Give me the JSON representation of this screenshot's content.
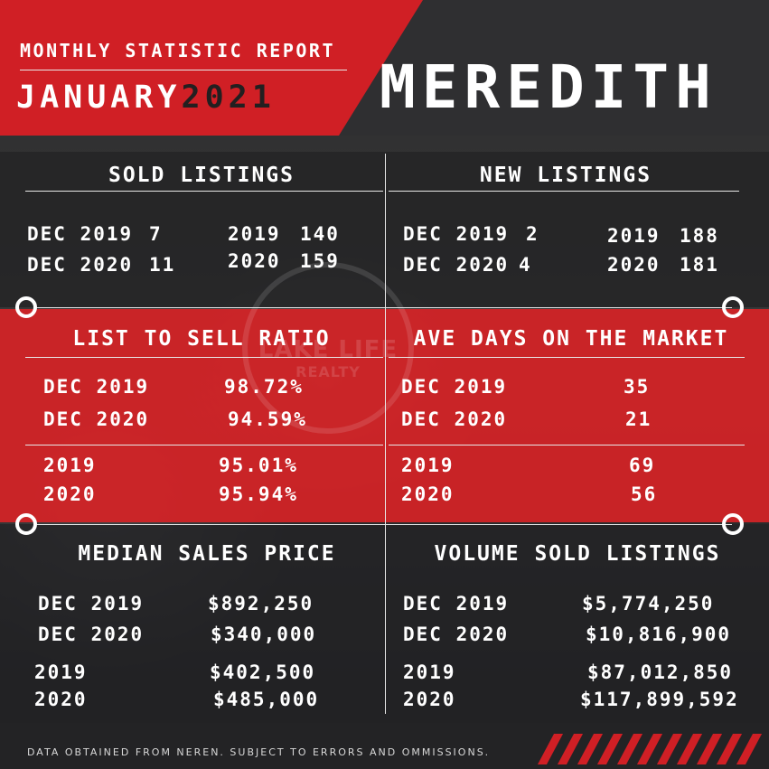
{
  "header": {
    "report_title": "MONTHLY STATISTIC REPORT",
    "month": "JANUARY",
    "year": "2021",
    "town": "MEREDITH"
  },
  "sold_listings": {
    "title": "SOLD LISTINGS",
    "rows": [
      {
        "label": "DEC 2019",
        "value": "7"
      },
      {
        "label": "DEC 2020",
        "value": "11"
      }
    ],
    "annual": [
      {
        "label": "2019",
        "value": "140"
      },
      {
        "label": "2020",
        "value": "159"
      }
    ]
  },
  "new_listings": {
    "title": "NEW LISTINGS",
    "rows": [
      {
        "label": "DEC 2019",
        "value": "2"
      },
      {
        "label": "DEC 2020",
        "value": "4"
      }
    ],
    "annual": [
      {
        "label": "2019",
        "value": "188"
      },
      {
        "label": "2020",
        "value": "181"
      }
    ]
  },
  "list_to_sell": {
    "title": "LIST TO SELL RATIO",
    "rows": [
      {
        "label": "DEC 2019",
        "value": "98.72%"
      },
      {
        "label": "DEC 2020",
        "value": "94.59%"
      }
    ],
    "annual": [
      {
        "label": "2019",
        "value": "95.01%"
      },
      {
        "label": "2020",
        "value": "95.94%"
      }
    ]
  },
  "ave_days": {
    "title": "AVE DAYS ON THE MARKET",
    "rows": [
      {
        "label": "DEC 2019",
        "value": "35"
      },
      {
        "label": "DEC 2020",
        "value": "21"
      }
    ],
    "annual": [
      {
        "label": "2019",
        "value": "69"
      },
      {
        "label": "2020",
        "value": "56"
      }
    ]
  },
  "median_price": {
    "title": "MEDIAN SALES PRICE",
    "rows": [
      {
        "label": "DEC 2019",
        "value": "$892,250"
      },
      {
        "label": "DEC 2020",
        "value": "$340,000"
      }
    ],
    "annual": [
      {
        "label": "2019",
        "value": "$402,500"
      },
      {
        "label": "2020",
        "value": "$485,000"
      }
    ]
  },
  "volume_sold": {
    "title": "VOLUME SOLD LISTINGS",
    "rows": [
      {
        "label": "DEC 2019",
        "value": "$5,774,250"
      },
      {
        "label": "DEC 2020",
        "value": "$10,816,900"
      }
    ],
    "annual": [
      {
        "label": "2019",
        "value": "$87,012,850"
      },
      {
        "label": "2020",
        "value": "$117,899,592"
      }
    ]
  },
  "background_logo": {
    "line1": "LAKE LIFE",
    "line2": "REALTY"
  },
  "footer": {
    "disclaimer": "DATA OBTAINED FROM NEREN. SUBJECT TO ERRORS AND OMMISSIONS."
  },
  "colors": {
    "accent_red": "#d01f25",
    "dark": "#2f2f31",
    "text": "#ffffff",
    "year_text": "#231f20"
  }
}
